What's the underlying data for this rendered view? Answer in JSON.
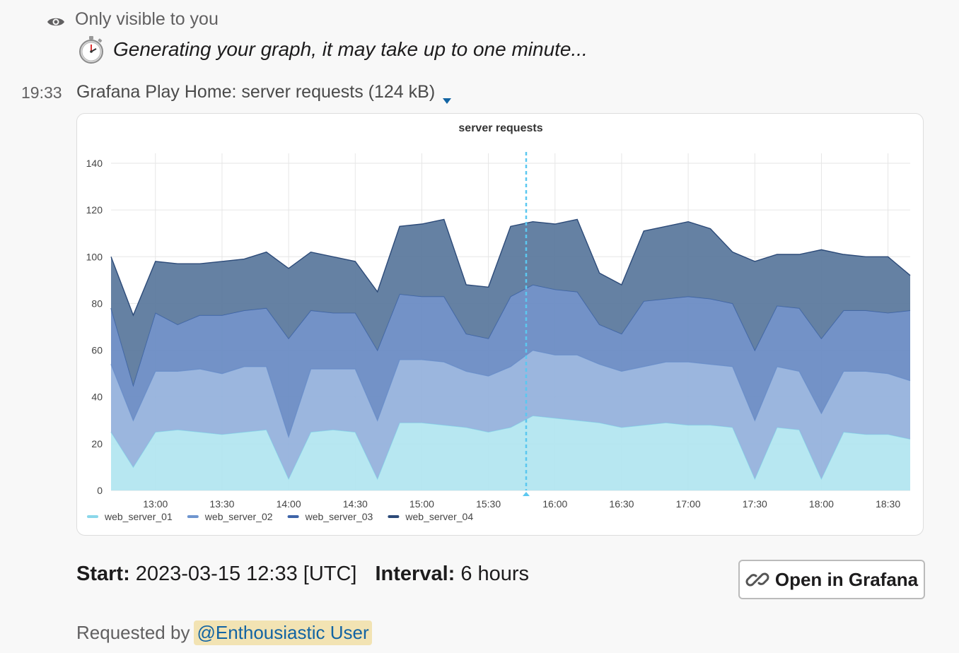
{
  "ephemeral": {
    "visibility_note": "Only visible to you",
    "message": "Generating your graph, it may take up to one minute..."
  },
  "message": {
    "timestamp": "19:33",
    "file_title": "Grafana Play Home: server requests (124 kB)"
  },
  "meta": {
    "start_label": "Start:",
    "start_value": "2023-03-15 12:33 [UTC]",
    "interval_label": "Interval:",
    "interval_value": "6 hours"
  },
  "button": {
    "label": "Open in Grafana"
  },
  "requested": {
    "prefix": "Requested by",
    "mention": "@Enthousiastic User"
  },
  "colors": {
    "web_server_01": "#b3e6f0",
    "web_server_02": "#96b2dc",
    "web_server_03": "#6b8cc4",
    "web_server_04": "#5d7a9e",
    "marker": "#5cc8f0"
  },
  "chart_data": {
    "type": "area",
    "stacked": true,
    "title": "server requests",
    "xlabel": "",
    "ylabel": "",
    "x_ticks": [
      "13:00",
      "13:30",
      "14:00",
      "14:30",
      "15:00",
      "15:30",
      "16:00",
      "16:30",
      "17:00",
      "17:30",
      "18:00",
      "18:30"
    ],
    "y_ticks": [
      0,
      20,
      40,
      60,
      80,
      100,
      120,
      140
    ],
    "ylim": [
      0,
      140
    ],
    "xlim": [
      "12:40",
      "18:40"
    ],
    "grid": true,
    "legend_position": "bottom-left",
    "marker_time": "15:47",
    "x": [
      "12:40",
      "12:50",
      "13:00",
      "13:10",
      "13:20",
      "13:30",
      "13:40",
      "13:50",
      "14:00",
      "14:10",
      "14:20",
      "14:30",
      "14:40",
      "14:50",
      "15:00",
      "15:10",
      "15:20",
      "15:30",
      "15:40",
      "15:50",
      "16:00",
      "16:10",
      "16:20",
      "16:30",
      "16:40",
      "16:50",
      "17:00",
      "17:10",
      "17:20",
      "17:30",
      "17:40",
      "17:50",
      "18:00",
      "18:10",
      "18:20",
      "18:30",
      "18:40"
    ],
    "series": [
      {
        "name": "web_server_01",
        "values": [
          25,
          10,
          25,
          26,
          25,
          24,
          25,
          26,
          5,
          25,
          26,
          25,
          5,
          29,
          29,
          28,
          27,
          25,
          27,
          32,
          31,
          30,
          29,
          27,
          28,
          29,
          28,
          28,
          27,
          5,
          27,
          26,
          5,
          25,
          24,
          24,
          22
        ]
      },
      {
        "name": "web_server_02",
        "values": [
          29,
          20,
          26,
          25,
          27,
          26,
          28,
          27,
          18,
          27,
          26,
          27,
          25,
          27,
          27,
          27,
          24,
          24,
          26,
          28,
          27,
          28,
          25,
          24,
          25,
          26,
          27,
          26,
          26,
          25,
          26,
          25,
          28,
          26,
          27,
          26,
          25
        ]
      },
      {
        "name": "web_server_03",
        "values": [
          24,
          15,
          25,
          20,
          23,
          25,
          24,
          25,
          42,
          25,
          24,
          24,
          30,
          28,
          27,
          28,
          16,
          16,
          30,
          28,
          28,
          27,
          17,
          16,
          28,
          27,
          28,
          28,
          27,
          30,
          26,
          27,
          32,
          26,
          26,
          26,
          30
        ]
      },
      {
        "name": "web_server_04",
        "values": [
          22,
          30,
          22,
          26,
          22,
          23,
          22,
          24,
          30,
          25,
          24,
          22,
          25,
          29,
          31,
          33,
          21,
          22,
          30,
          27,
          28,
          31,
          22,
          21,
          30,
          31,
          32,
          30,
          22,
          38,
          22,
          23,
          38,
          24,
          23,
          24,
          15
        ]
      }
    ],
    "legend": [
      "web_server_01",
      "web_server_02",
      "web_server_03",
      "web_server_04"
    ]
  }
}
